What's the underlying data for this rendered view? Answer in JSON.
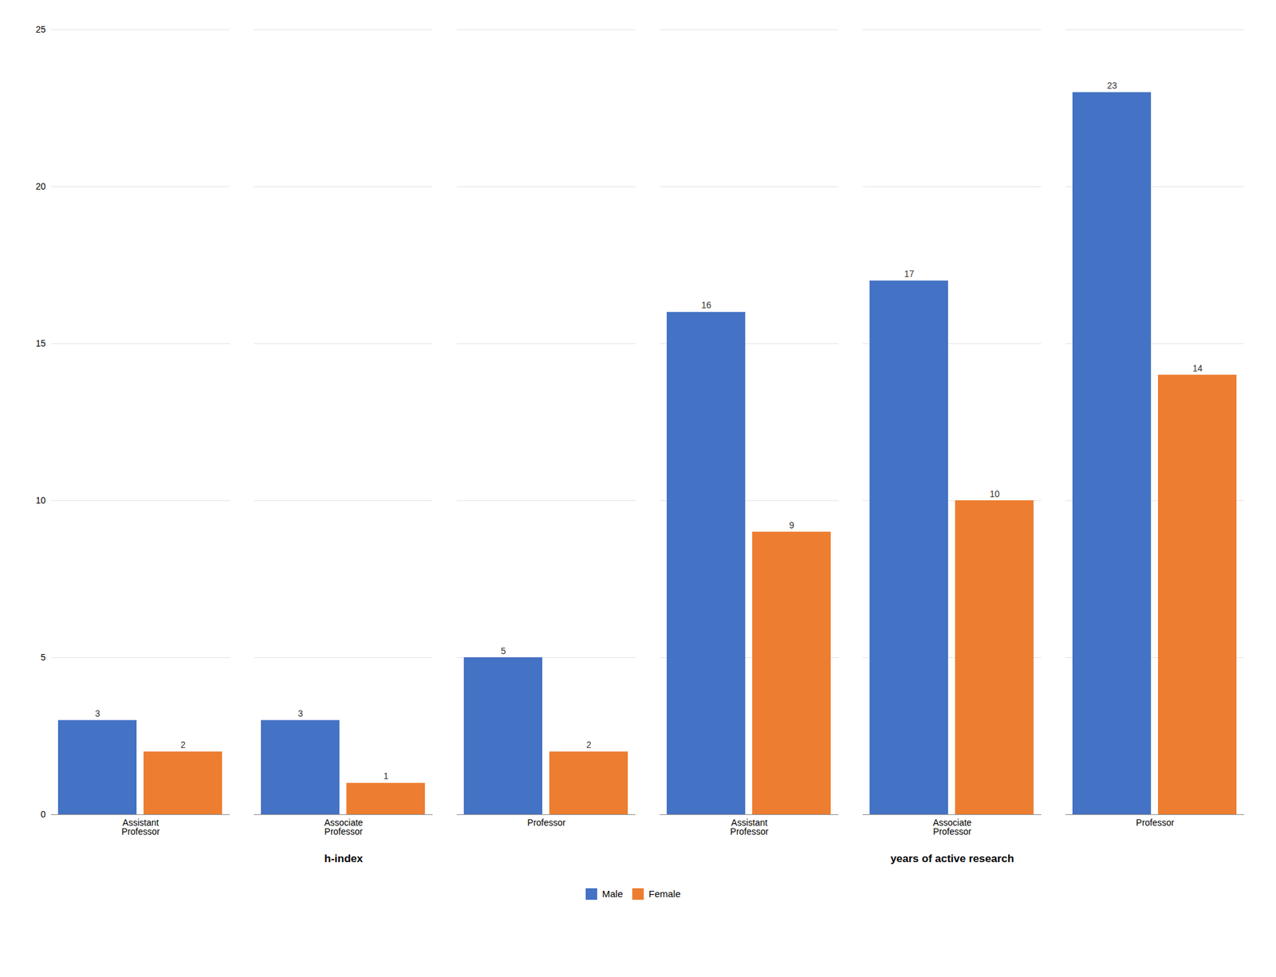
{
  "chart_data": {
    "type": "bar",
    "categories": [
      "Assistant\nProfessor",
      "Associate\nProfessor",
      "Professor",
      "Assistant\nProfessor",
      "Associate\nProfessor",
      "Professor"
    ],
    "group_labels": [
      "h-index",
      "h-index",
      "h-index",
      "years of active research",
      "years of active research",
      "years of active research"
    ],
    "series": [
      {
        "name": "Male",
        "color": "#4472C4",
        "values": [
          3,
          3,
          5,
          16,
          17,
          23
        ]
      },
      {
        "name": "Female",
        "color": "#ED7D31",
        "values": [
          2,
          1,
          2,
          9,
          10,
          14
        ]
      }
    ],
    "ylim": [
      0,
      25
    ],
    "yticks": [
      0,
      5,
      10,
      15,
      20,
      25
    ],
    "grid": true,
    "legend": "bottom",
    "data_labels": true
  }
}
